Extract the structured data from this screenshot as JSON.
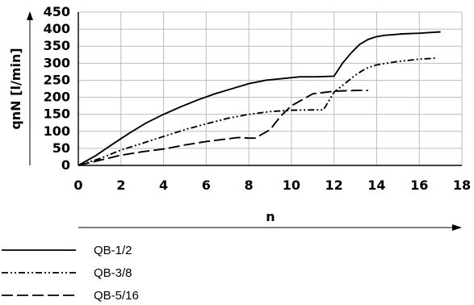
{
  "chart_data": {
    "type": "line",
    "title": "",
    "xlabel": "n",
    "ylabel": "qnN [l/min]",
    "xlim": [
      0,
      18
    ],
    "ylim": [
      0,
      450
    ],
    "xticks": [
      "0",
      "2",
      "4",
      "6",
      "8",
      "10",
      "12",
      "14",
      "16",
      "18"
    ],
    "yticks": [
      "0",
      "50",
      "100",
      "150",
      "200",
      "250",
      "300",
      "350",
      "400",
      "450"
    ],
    "grid": true,
    "legend_position": "bottom-left",
    "series": [
      {
        "name": "QB-1/2",
        "style": "solid",
        "x": [
          0,
          0.8,
          1.6,
          2.4,
          3.2,
          4,
          4.8,
          5.6,
          6.4,
          7.2,
          8,
          8.8,
          9.6,
          10.4,
          11.2,
          12,
          12.4,
          12.8,
          13.2,
          13.6,
          14,
          14.4,
          14.8,
          15.2,
          15.6,
          16,
          16.5,
          17
        ],
        "y": [
          0,
          28,
          62,
          95,
          125,
          150,
          172,
          192,
          210,
          225,
          240,
          250,
          255,
          260,
          260,
          262,
          300,
          330,
          355,
          370,
          378,
          382,
          384,
          386,
          387,
          388,
          390,
          392
        ]
      },
      {
        "name": "QB-3/8",
        "style": "dash-dot-dot",
        "x": [
          0,
          1,
          2,
          3,
          4,
          5,
          6,
          7,
          8,
          9,
          10,
          11,
          11.5,
          12,
          12.5,
          13,
          13.5,
          14,
          15,
          16,
          16.8
        ],
        "y": [
          0,
          20,
          45,
          65,
          85,
          105,
          122,
          138,
          150,
          158,
          162,
          163,
          163,
          215,
          240,
          265,
          285,
          295,
          305,
          312,
          315
        ]
      },
      {
        "name": "QB-5/16",
        "style": "long-dash",
        "x": [
          0,
          1,
          2,
          3,
          4,
          5,
          6,
          7,
          7.5,
          8,
          8.3,
          9,
          9.5,
          10,
          11,
          12,
          12.5,
          13,
          13.6
        ],
        "y": [
          0,
          15,
          30,
          40,
          48,
          60,
          70,
          78,
          82,
          80,
          80,
          105,
          145,
          175,
          210,
          218,
          219,
          220,
          220
        ]
      }
    ]
  }
}
